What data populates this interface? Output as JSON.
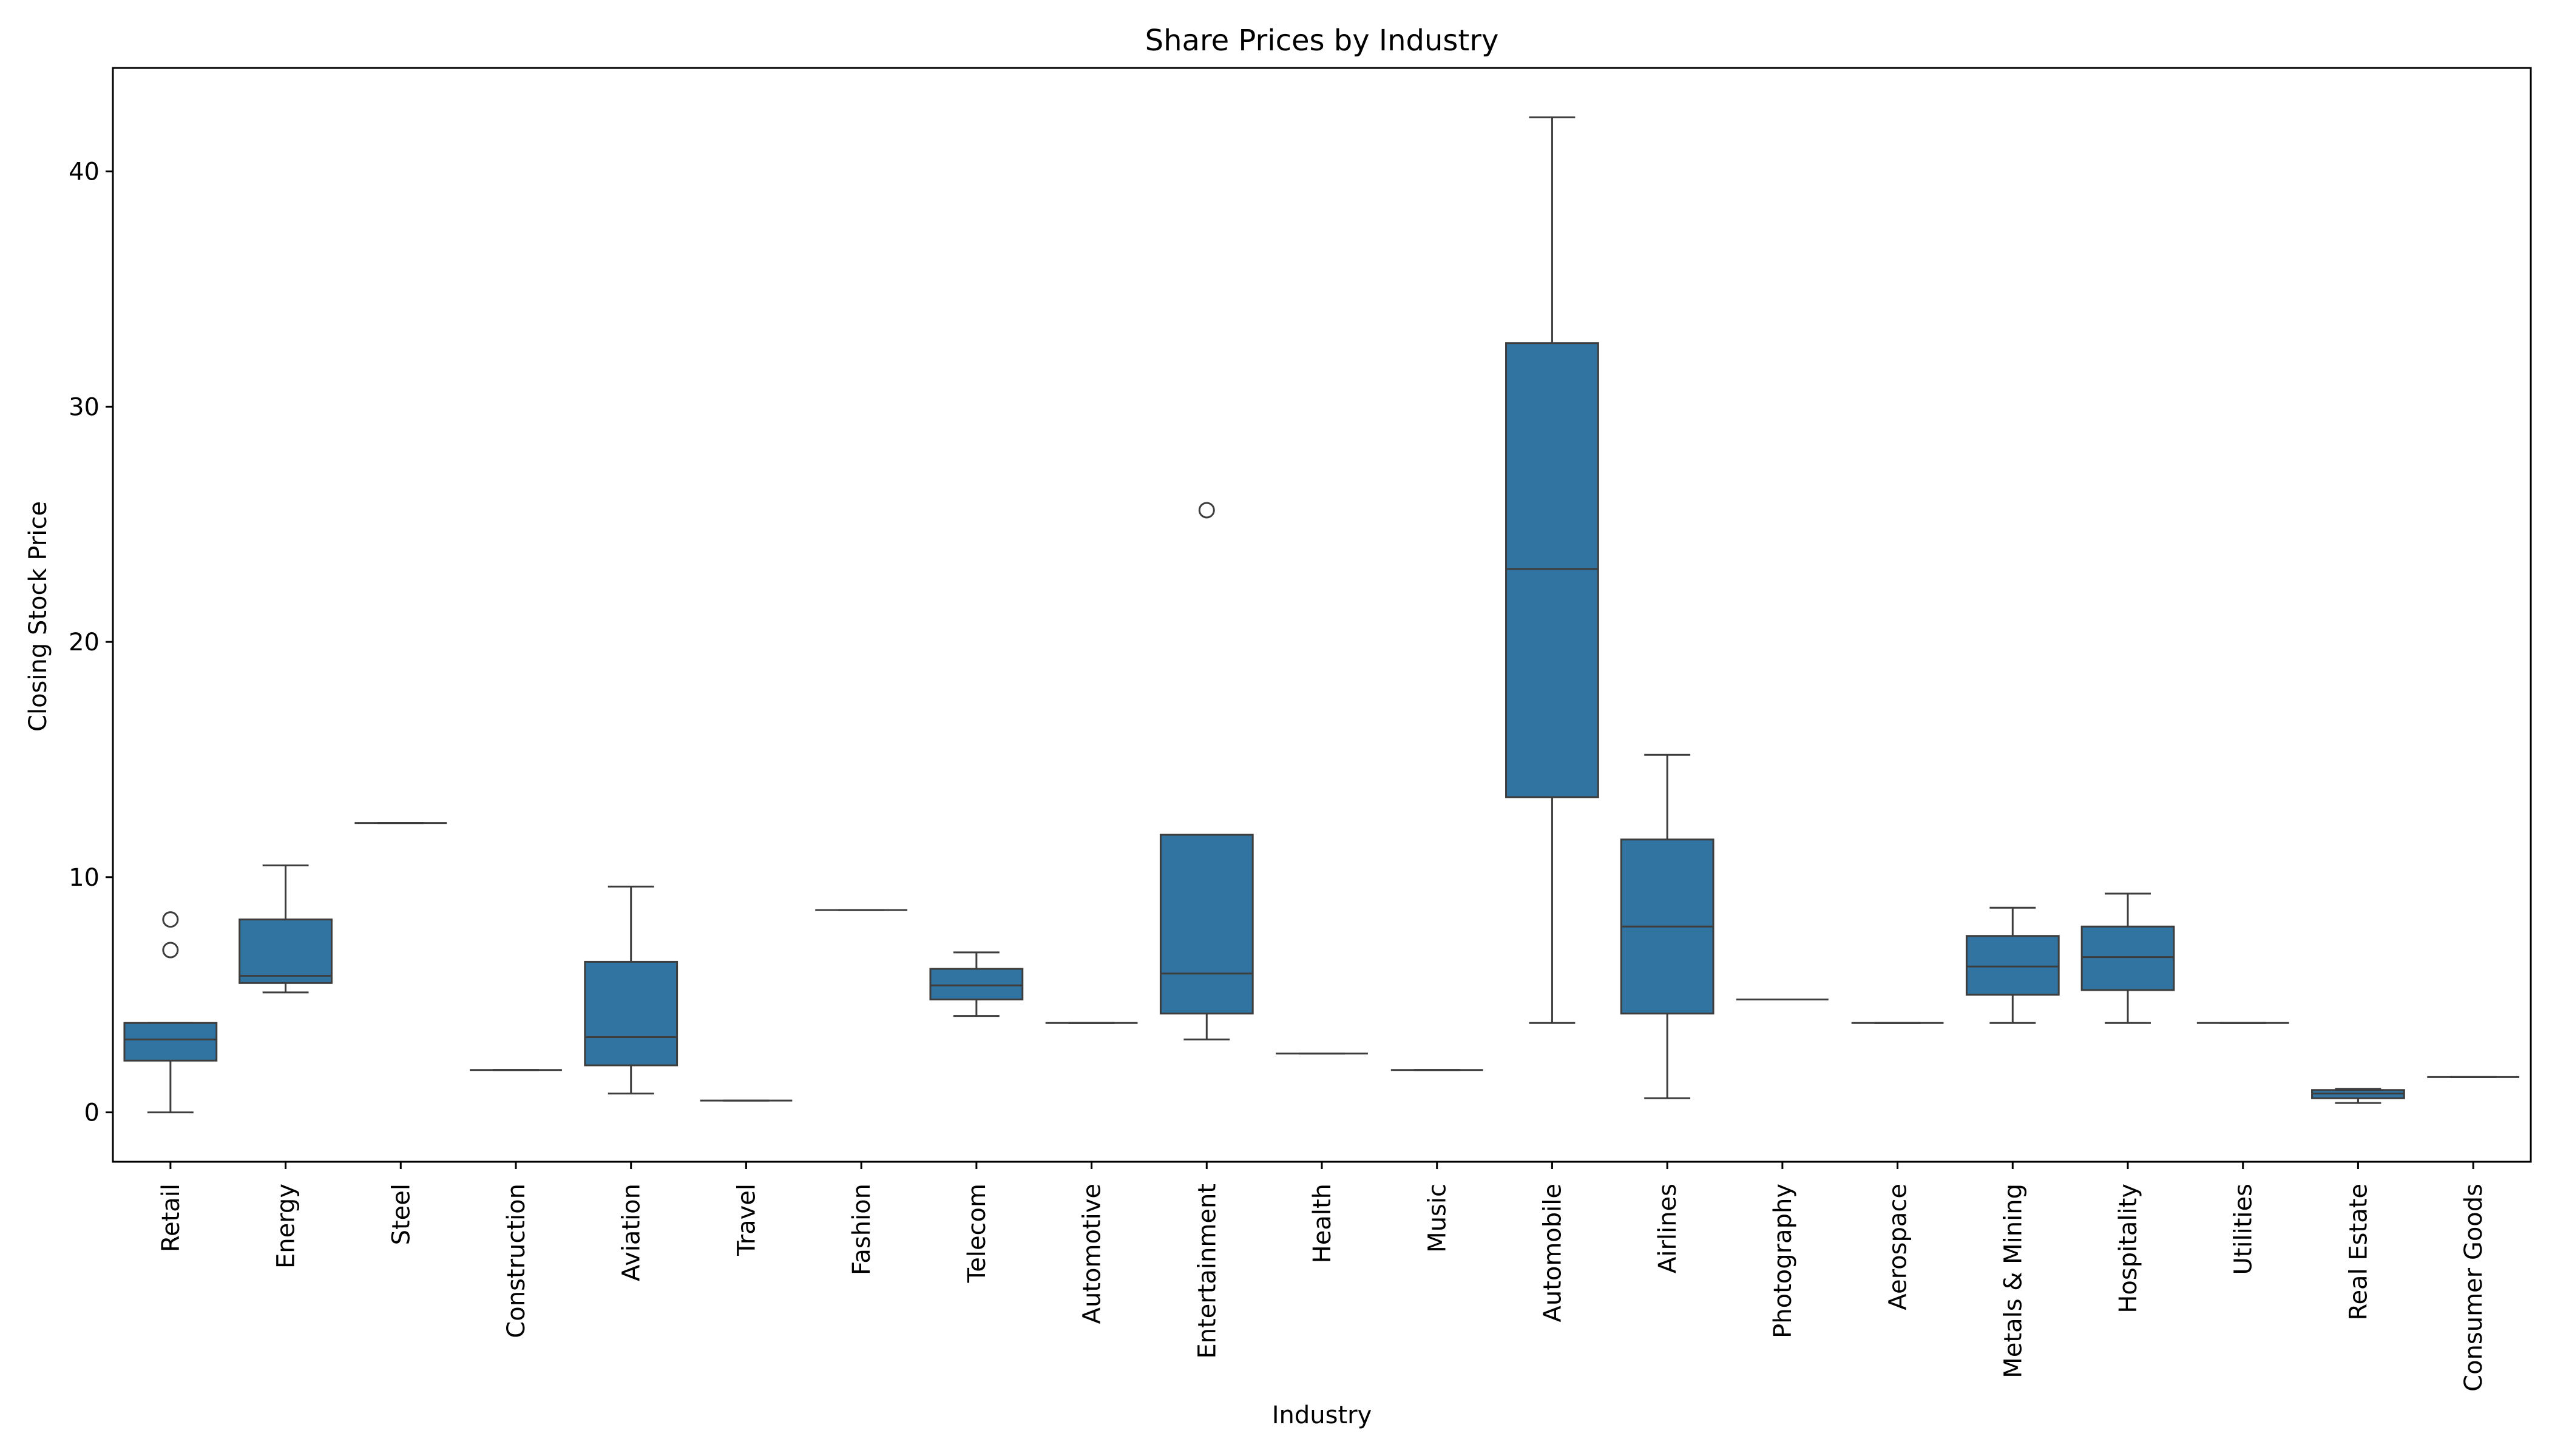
{
  "chart_data": {
    "type": "box",
    "title": "Share Prices by Industry",
    "xlabel": "Industry",
    "ylabel": "Closing Stock Price",
    "ylim": [
      -2.1,
      44.4
    ],
    "yticks": [
      0,
      10,
      20,
      30,
      40
    ],
    "grid": false,
    "box_color": "#3274a1",
    "line_color": "#3d3d3d",
    "categories": [
      "Retail",
      "Energy",
      "Steel",
      "Construction",
      "Aviation",
      "Travel",
      "Fashion",
      "Telecom",
      "Automotive",
      "Entertainment",
      "Health",
      "Music",
      "Automobile",
      "Airlines",
      "Photography",
      "Aerospace",
      "Metals & Mining",
      "Hospitality",
      "Utilities",
      "Real Estate",
      "Consumer Goods"
    ],
    "boxes": [
      {
        "category": "Retail",
        "whislo": 0.0,
        "q1": 2.2,
        "median": 3.1,
        "q3": 3.8,
        "whishi": 3.8,
        "fliers": [
          6.9,
          8.2
        ]
      },
      {
        "category": "Energy",
        "whislo": 5.1,
        "q1": 5.5,
        "median": 5.8,
        "q3": 8.2,
        "whishi": 10.5,
        "fliers": []
      },
      {
        "category": "Steel",
        "whislo": 12.3,
        "q1": 12.3,
        "median": 12.3,
        "q3": 12.3,
        "whishi": 12.3,
        "fliers": []
      },
      {
        "category": "Construction",
        "whislo": 1.8,
        "q1": 1.8,
        "median": 1.8,
        "q3": 1.8,
        "whishi": 1.8,
        "fliers": []
      },
      {
        "category": "Aviation",
        "whislo": 0.8,
        "q1": 2.0,
        "median": 3.2,
        "q3": 6.4,
        "whishi": 9.6,
        "fliers": []
      },
      {
        "category": "Travel",
        "whislo": 0.5,
        "q1": 0.5,
        "median": 0.5,
        "q3": 0.5,
        "whishi": 0.5,
        "fliers": []
      },
      {
        "category": "Fashion",
        "whislo": 8.6,
        "q1": 8.6,
        "median": 8.6,
        "q3": 8.6,
        "whishi": 8.6,
        "fliers": []
      },
      {
        "category": "Telecom",
        "whislo": 4.1,
        "q1": 4.8,
        "median": 5.4,
        "q3": 6.1,
        "whishi": 6.8,
        "fliers": []
      },
      {
        "category": "Automotive",
        "whislo": 3.8,
        "q1": 3.8,
        "median": 3.8,
        "q3": 3.8,
        "whishi": 3.8,
        "fliers": []
      },
      {
        "category": "Entertainment",
        "whislo": 3.1,
        "q1": 4.2,
        "median": 5.9,
        "q3": 11.8,
        "whishi": 11.8,
        "fliers": [
          25.6
        ]
      },
      {
        "category": "Health",
        "whislo": 2.5,
        "q1": 2.5,
        "median": 2.5,
        "q3": 2.5,
        "whishi": 2.5,
        "fliers": []
      },
      {
        "category": "Music",
        "whislo": 1.8,
        "q1": 1.8,
        "median": 1.8,
        "q3": 1.8,
        "whishi": 1.8,
        "fliers": []
      },
      {
        "category": "Automobile",
        "whislo": 3.8,
        "q1": 13.4,
        "median": 23.1,
        "q3": 32.7,
        "whishi": 42.3,
        "fliers": []
      },
      {
        "category": "Airlines",
        "whislo": 0.6,
        "q1": 4.2,
        "median": 7.9,
        "q3": 11.6,
        "whishi": 15.2,
        "fliers": []
      },
      {
        "category": "Photography",
        "whislo": 4.8,
        "q1": 4.8,
        "median": 4.8,
        "q3": 4.8,
        "whishi": 4.8,
        "fliers": []
      },
      {
        "category": "Aerospace",
        "whislo": 3.8,
        "q1": 3.8,
        "median": 3.8,
        "q3": 3.8,
        "whishi": 3.8,
        "fliers": []
      },
      {
        "category": "Metals & Mining",
        "whislo": 3.8,
        "q1": 5.0,
        "median": 6.2,
        "q3": 7.5,
        "whishi": 8.7,
        "fliers": []
      },
      {
        "category": "Hospitality",
        "whislo": 3.8,
        "q1": 5.2,
        "median": 6.6,
        "q3": 7.9,
        "whishi": 9.3,
        "fliers": []
      },
      {
        "category": "Utilities",
        "whislo": 3.8,
        "q1": 3.8,
        "median": 3.8,
        "q3": 3.8,
        "whishi": 3.8,
        "fliers": []
      },
      {
        "category": "Real Estate",
        "whislo": 0.4,
        "q1": 0.6,
        "median": 0.8,
        "q3": 0.95,
        "whishi": 1.0,
        "fliers": []
      },
      {
        "category": "Consumer Goods",
        "whislo": 1.5,
        "q1": 1.5,
        "median": 1.5,
        "q3": 1.5,
        "whishi": 1.5,
        "fliers": []
      }
    ]
  }
}
